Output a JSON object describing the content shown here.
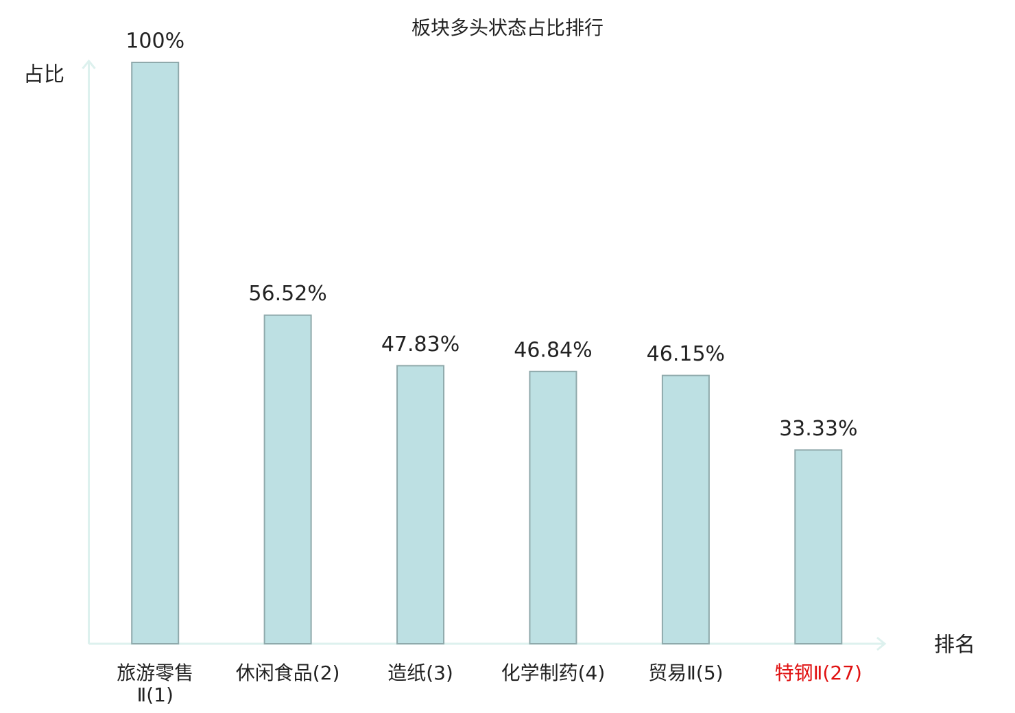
{
  "chart_data": {
    "type": "bar",
    "title": "板块多头状态占比排行",
    "y_label": "占比",
    "x_label": "排名",
    "categories": [
      "旅游零售\nⅡ(1)",
      "休闲食品(2)",
      "造纸(3)",
      "化学制药(4)",
      "贸易Ⅱ(5)",
      "特钢Ⅱ(27)"
    ],
    "category_colors": [
      "#222222",
      "#222222",
      "#222222",
      "#222222",
      "#222222",
      "#e01010"
    ],
    "values": [
      100,
      56.52,
      47.83,
      46.84,
      46.15,
      33.33
    ],
    "value_labels": [
      "100%",
      "56.52%",
      "47.83%",
      "46.84%",
      "46.15%",
      "33.33%"
    ],
    "color": "#bde0e3",
    "edge_color": "#8fa9ab",
    "axis_color": "#ddf1ee",
    "ylim": [
      0,
      100
    ]
  }
}
